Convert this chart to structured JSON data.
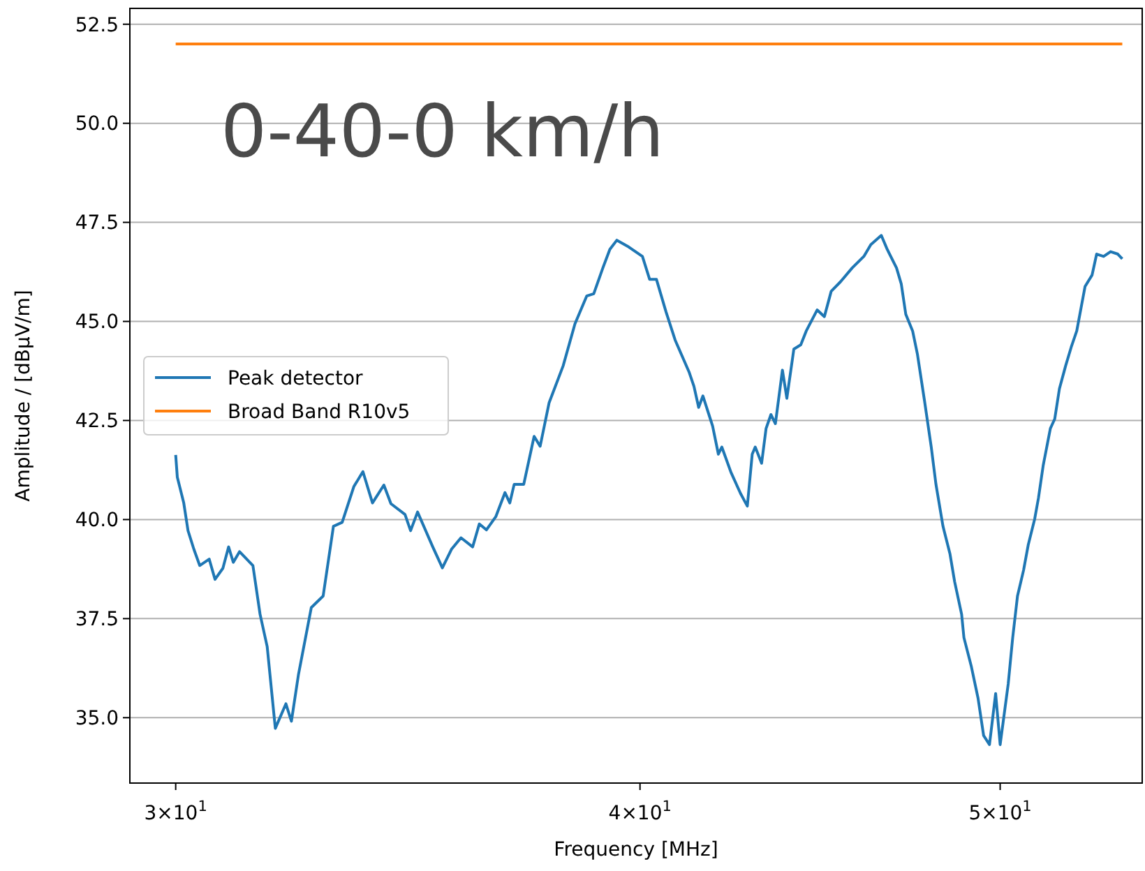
{
  "chart_data": {
    "type": "line",
    "xlabel": "Frequency [MHz]",
    "ylabel": "Amplitude / [dBµV/m]",
    "annotations": [
      "0-40-0 km/h"
    ],
    "log": "x",
    "grid": "y",
    "legend": "left",
    "xlim": [
      29.16,
      54.6
    ],
    "ylim": [
      33.35,
      52.9
    ],
    "xticks": [
      {
        "value": 30,
        "label": "3×10$^{1}$"
      },
      {
        "value": 40,
        "label": "4×10$^{1}$"
      },
      {
        "value": 50,
        "label": "5×10$^{1}$"
      }
    ],
    "yticks": [
      {
        "value": 35,
        "label": "35.0"
      },
      {
        "value": 37.5,
        "label": "37.5"
      },
      {
        "value": 40,
        "label": "40.0"
      },
      {
        "value": 42.5,
        "label": "42.5"
      },
      {
        "value": 45,
        "label": "45.0"
      },
      {
        "value": 47.5,
        "label": "47.5"
      },
      {
        "value": 50,
        "label": "50.0"
      },
      {
        "value": 52.5,
        "label": "52.5"
      }
    ],
    "series": [
      {
        "name": "Peak detector",
        "color": "#1f77b4",
        "x": [
          30.0,
          30.03,
          30.15,
          30.23,
          30.34,
          30.45,
          30.63,
          30.74,
          30.89,
          31.0,
          31.09,
          31.21,
          31.47,
          31.61,
          31.75,
          31.91,
          32.12,
          32.23,
          32.37,
          32.63,
          32.87,
          33.08,
          33.26,
          33.5,
          33.69,
          33.89,
          34.13,
          34.28,
          34.58,
          34.7,
          34.85,
          35.18,
          35.39,
          35.59,
          35.8,
          36.06,
          36.21,
          36.37,
          36.58,
          36.79,
          36.9,
          37.0,
          37.22,
          37.46,
          37.6,
          37.81,
          38.14,
          38.42,
          38.7,
          38.87,
          39.09,
          39.26,
          39.43,
          39.72,
          40.06,
          40.24,
          40.41,
          40.65,
          40.88,
          41.24,
          41.36,
          41.48,
          41.59,
          41.84,
          41.99,
          42.08,
          42.32,
          42.57,
          42.75,
          42.88,
          42.96,
          43.13,
          43.25,
          43.38,
          43.5,
          43.69,
          43.81,
          44.0,
          44.19,
          44.34,
          44.64,
          44.84,
          45.03,
          45.29,
          45.62,
          45.95,
          46.15,
          46.45,
          46.62,
          46.89,
          47.03,
          47.16,
          47.36,
          47.5,
          47.71,
          47.91,
          48.05,
          48.26,
          48.47,
          48.61,
          48.82,
          48.89,
          49.11,
          49.32,
          49.49,
          49.67,
          49.86,
          50.0,
          50.25,
          50.39,
          50.54,
          50.73,
          50.88,
          51.08,
          51.2,
          51.35,
          51.58,
          51.72,
          51.87,
          52.07,
          52.25,
          52.43,
          52.7,
          52.93,
          53.08,
          53.31,
          53.54,
          53.78,
          53.93
        ],
        "values": [
          41.63,
          41.07,
          40.42,
          39.72,
          39.25,
          38.84,
          39.0,
          38.49,
          38.77,
          39.31,
          38.92,
          39.19,
          38.84,
          37.61,
          36.79,
          34.73,
          35.35,
          34.91,
          36.08,
          37.78,
          38.07,
          39.83,
          39.93,
          40.83,
          41.21,
          40.42,
          40.87,
          40.4,
          40.13,
          39.72,
          40.19,
          39.31,
          38.78,
          39.25,
          39.54,
          39.31,
          39.89,
          39.74,
          40.07,
          40.68,
          40.42,
          40.89,
          40.89,
          42.1,
          41.85,
          42.95,
          43.88,
          44.94,
          45.64,
          45.7,
          46.35,
          46.82,
          47.05,
          46.88,
          46.64,
          46.06,
          46.06,
          45.24,
          44.53,
          43.71,
          43.36,
          42.83,
          43.12,
          42.36,
          41.65,
          41.83,
          41.19,
          40.66,
          40.34,
          41.65,
          41.83,
          41.42,
          42.3,
          42.65,
          42.42,
          43.77,
          43.06,
          44.3,
          44.41,
          44.76,
          45.29,
          45.12,
          45.76,
          46.0,
          46.35,
          46.64,
          46.94,
          47.17,
          46.82,
          46.35,
          45.94,
          45.18,
          44.76,
          44.18,
          43.0,
          41.83,
          40.89,
          39.83,
          39.13,
          38.43,
          37.61,
          37.02,
          36.31,
          35.49,
          34.55,
          34.32,
          35.61,
          34.32,
          35.85,
          37.02,
          38.07,
          38.72,
          39.37,
          40.01,
          40.54,
          41.36,
          42.3,
          42.54,
          43.3,
          43.88,
          44.35,
          44.76,
          45.88,
          46.17,
          46.7,
          46.64,
          46.76,
          46.7,
          46.58
        ]
      },
      {
        "name": "Broad Band R10v5",
        "color": "#ff7f0e",
        "x": [
          30,
          53.93
        ],
        "values": [
          52.0,
          52.0
        ]
      }
    ]
  }
}
